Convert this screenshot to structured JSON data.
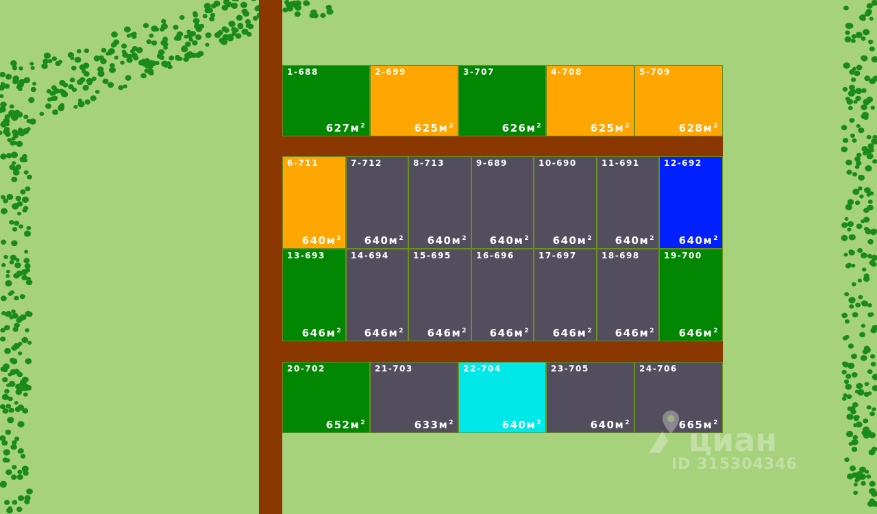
{
  "colors": {
    "background": "#a6d27c",
    "road": "#8b3700",
    "tree": "#1a8a1a",
    "status": {
      "green": "#028702",
      "orange": "#ffa601",
      "gray": "#534e5d",
      "blue": "#0120ff",
      "cyan": "#00e8e9"
    }
  },
  "unit": "м",
  "unit_power": "2",
  "plots": [
    {
      "label": "1-688",
      "area": "627",
      "status": "green"
    },
    {
      "label": "2-699",
      "area": "625",
      "status": "orange"
    },
    {
      "label": "3-707",
      "area": "626",
      "status": "green"
    },
    {
      "label": "4-708",
      "area": "625",
      "status": "orange"
    },
    {
      "label": "5-709",
      "area": "628",
      "status": "orange"
    },
    {
      "label": "6-711",
      "area": "640",
      "status": "orange"
    },
    {
      "label": "7-712",
      "area": "640",
      "status": "gray"
    },
    {
      "label": "8-713",
      "area": "640",
      "status": "gray"
    },
    {
      "label": "9-689",
      "area": "640",
      "status": "gray"
    },
    {
      "label": "10-690",
      "area": "640",
      "status": "gray"
    },
    {
      "label": "11-691",
      "area": "640",
      "status": "gray"
    },
    {
      "label": "12-692",
      "area": "640",
      "status": "blue"
    },
    {
      "label": "13-693",
      "area": "646",
      "status": "green"
    },
    {
      "label": "14-694",
      "area": "646",
      "status": "gray"
    },
    {
      "label": "15-695",
      "area": "646",
      "status": "gray"
    },
    {
      "label": "16-696",
      "area": "646",
      "status": "gray"
    },
    {
      "label": "17-697",
      "area": "646",
      "status": "gray"
    },
    {
      "label": "18-698",
      "area": "646",
      "status": "gray"
    },
    {
      "label": "19-700",
      "area": "646",
      "status": "green"
    },
    {
      "label": "20-702",
      "area": "652",
      "status": "green"
    },
    {
      "label": "21-703",
      "area": "633",
      "status": "gray"
    },
    {
      "label": "22-704",
      "area": "640",
      "status": "cyan"
    },
    {
      "label": "23-705",
      "area": "640",
      "status": "gray"
    },
    {
      "label": "24-706",
      "area": "665",
      "status": "gray"
    }
  ],
  "watermark": {
    "brand": "циан",
    "id": "ID 315304346",
    "icon": "map-pin-icon"
  }
}
